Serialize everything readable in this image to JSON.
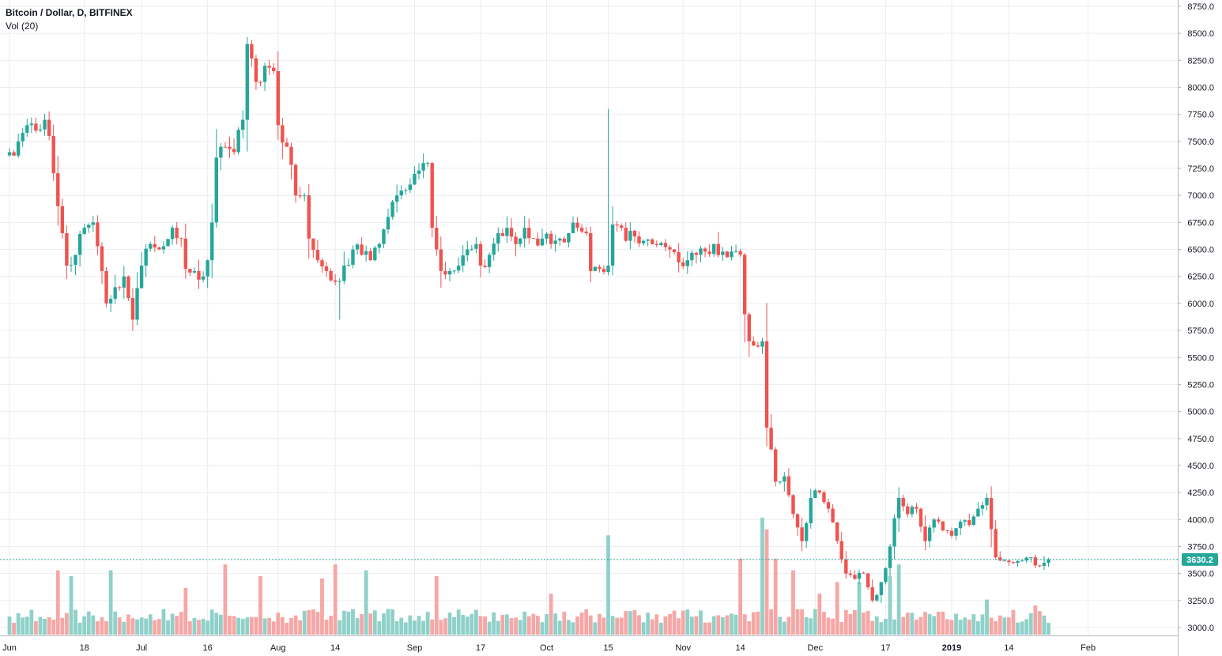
{
  "header": {
    "symbol_title": "Bitcoin / Dollar, D, BITFINEX",
    "volume_label": "Vol (20)"
  },
  "colors": {
    "up": "#26a69a",
    "down": "#ef5350",
    "up_volume": "#8fd1c9",
    "down_volume": "#f5a7a6",
    "grid": "#e9edf2",
    "axis_text": "#131722",
    "last_price": "#26a69a"
  },
  "chart_data": {
    "type": "candlestick",
    "title": "Bitcoin / Dollar, D, BITFINEX",
    "ylim": [
      2950,
      8800
    ],
    "y_ticks": [
      "8750.0",
      "8500.0",
      "8250.0",
      "8000.0",
      "7750.0",
      "7500.0",
      "7250.0",
      "7000.0",
      "6750.0",
      "6500.0",
      "6250.0",
      "6000.0",
      "5750.0",
      "5500.0",
      "5250.0",
      "5000.0",
      "4750.0",
      "4500.0",
      "4250.0",
      "4000.0",
      "3750.0",
      "3500.0",
      "3250.0",
      "3000.0"
    ],
    "x_ticks": [
      {
        "label": "Jun",
        "day": 0
      },
      {
        "label": "18",
        "day": 17
      },
      {
        "label": "Jul",
        "day": 30
      },
      {
        "label": "16",
        "day": 45
      },
      {
        "label": "Aug",
        "day": 61
      },
      {
        "label": "14",
        "day": 74
      },
      {
        "label": "Sep",
        "day": 92
      },
      {
        "label": "17",
        "day": 107
      },
      {
        "label": "Oct",
        "day": 122
      },
      {
        "label": "15",
        "day": 136
      },
      {
        "label": "Nov",
        "day": 153
      },
      {
        "label": "14",
        "day": 166
      },
      {
        "label": "Dec",
        "day": 183
      },
      {
        "label": "17",
        "day": 199
      },
      {
        "label": "2019",
        "day": 214
      },
      {
        "label": "14",
        "day": 227
      },
      {
        "label": "Feb",
        "day": 245
      }
    ],
    "last_price": "3630.2",
    "last_price_value": 3630.2,
    "anchors": [
      {
        "d": 0,
        "p": 7400
      },
      {
        "d": 2,
        "p": 7500
      },
      {
        "d": 4,
        "p": 7650
      },
      {
        "d": 6,
        "p": 7600
      },
      {
        "d": 8,
        "p": 7700
      },
      {
        "d": 9,
        "p": 7550
      },
      {
        "d": 11,
        "p": 6900
      },
      {
        "d": 12,
        "p": 6650
      },
      {
        "d": 13,
        "p": 6350
      },
      {
        "d": 15,
        "p": 6450
      },
      {
        "d": 17,
        "p": 6700
      },
      {
        "d": 19,
        "p": 6750
      },
      {
        "d": 21,
        "p": 6300
      },
      {
        "d": 22,
        "p": 6000
      },
      {
        "d": 24,
        "p": 6150
      },
      {
        "d": 26,
        "p": 6250
      },
      {
        "d": 27,
        "p": 6050
      },
      {
        "d": 28,
        "p": 5850
      },
      {
        "d": 30,
        "p": 6350
      },
      {
        "d": 32,
        "p": 6550
      },
      {
        "d": 34,
        "p": 6500
      },
      {
        "d": 37,
        "p": 6700
      },
      {
        "d": 39,
        "p": 6600
      },
      {
        "d": 40,
        "p": 6320
      },
      {
        "d": 42,
        "p": 6300
      },
      {
        "d": 44,
        "p": 6250
      },
      {
        "d": 45,
        "p": 6400
      },
      {
        "d": 46,
        "p": 6750
      },
      {
        "d": 47,
        "p": 7350
      },
      {
        "d": 49,
        "p": 7450
      },
      {
        "d": 51,
        "p": 7400
      },
      {
        "d": 53,
        "p": 7700
      },
      {
        "d": 54,
        "p": 8400
      },
      {
        "d": 56,
        "p": 8050
      },
      {
        "d": 58,
        "p": 8200
      },
      {
        "d": 60,
        "p": 8150
      },
      {
        "d": 61,
        "p": 7650
      },
      {
        "d": 63,
        "p": 7450
      },
      {
        "d": 65,
        "p": 7000
      },
      {
        "d": 67,
        "p": 7000
      },
      {
        "d": 68,
        "p": 6600
      },
      {
        "d": 70,
        "p": 6400
      },
      {
        "d": 72,
        "p": 6300
      },
      {
        "d": 74,
        "p": 6200
      },
      {
        "d": 76,
        "p": 6350
      },
      {
        "d": 78,
        "p": 6500
      },
      {
        "d": 80,
        "p": 6450
      },
      {
        "d": 82,
        "p": 6400
      },
      {
        "d": 84,
        "p": 6550
      },
      {
        "d": 86,
        "p": 6800
      },
      {
        "d": 88,
        "p": 7000
      },
      {
        "d": 90,
        "p": 7050
      },
      {
        "d": 92,
        "p": 7200
      },
      {
        "d": 94,
        "p": 7300
      },
      {
        "d": 95,
        "p": 7300
      },
      {
        "d": 96,
        "p": 6700
      },
      {
        "d": 97,
        "p": 6500
      },
      {
        "d": 98,
        "p": 6300
      },
      {
        "d": 100,
        "p": 6300
      },
      {
        "d": 102,
        "p": 6350
      },
      {
        "d": 104,
        "p": 6500
      },
      {
        "d": 106,
        "p": 6550
      },
      {
        "d": 107,
        "p": 6350
      },
      {
        "d": 109,
        "p": 6450
      },
      {
        "d": 111,
        "p": 6650
      },
      {
        "d": 113,
        "p": 6700
      },
      {
        "d": 115,
        "p": 6550
      },
      {
        "d": 117,
        "p": 6700
      },
      {
        "d": 119,
        "p": 6600
      },
      {
        "d": 121,
        "p": 6600
      },
      {
        "d": 123,
        "p": 6550
      },
      {
        "d": 125,
        "p": 6600
      },
      {
        "d": 127,
        "p": 6650
      },
      {
        "d": 129,
        "p": 6700
      },
      {
        "d": 131,
        "p": 6650
      },
      {
        "d": 132,
        "p": 6300
      },
      {
        "d": 134,
        "p": 6320
      },
      {
        "d": 136,
        "p": 6350
      },
      {
        "d": 137,
        "p": 6730
      },
      {
        "d": 139,
        "p": 6700
      },
      {
        "d": 140,
        "p": 6580
      },
      {
        "d": 142,
        "p": 6620
      },
      {
        "d": 144,
        "p": 6580
      },
      {
        "d": 146,
        "p": 6550
      },
      {
        "d": 148,
        "p": 6560
      },
      {
        "d": 150,
        "p": 6500
      },
      {
        "d": 152,
        "p": 6380
      },
      {
        "d": 154,
        "p": 6400
      },
      {
        "d": 156,
        "p": 6450
      },
      {
        "d": 158,
        "p": 6480
      },
      {
        "d": 160,
        "p": 6550
      },
      {
        "d": 162,
        "p": 6480
      },
      {
        "d": 164,
        "p": 6480
      },
      {
        "d": 166,
        "p": 6450
      },
      {
        "d": 167,
        "p": 5900
      },
      {
        "d": 168,
        "p": 5650
      },
      {
        "d": 170,
        "p": 5600
      },
      {
        "d": 171,
        "p": 5650
      },
      {
        "d": 172,
        "p": 4850
      },
      {
        "d": 173,
        "p": 4650
      },
      {
        "d": 174,
        "p": 4350
      },
      {
        "d": 176,
        "p": 4400
      },
      {
        "d": 178,
        "p": 4050
      },
      {
        "d": 180,
        "p": 3800
      },
      {
        "d": 182,
        "p": 4200
      },
      {
        "d": 184,
        "p": 4250
      },
      {
        "d": 186,
        "p": 4100
      },
      {
        "d": 188,
        "p": 3800
      },
      {
        "d": 190,
        "p": 3500
      },
      {
        "d": 192,
        "p": 3450
      },
      {
        "d": 194,
        "p": 3500
      },
      {
        "d": 196,
        "p": 3250
      },
      {
        "d": 197,
        "p": 3300
      },
      {
        "d": 199,
        "p": 3550
      },
      {
        "d": 200,
        "p": 3750
      },
      {
        "d": 202,
        "p": 4200
      },
      {
        "d": 204,
        "p": 4050
      },
      {
        "d": 206,
        "p": 4100
      },
      {
        "d": 208,
        "p": 3800
      },
      {
        "d": 210,
        "p": 4000
      },
      {
        "d": 212,
        "p": 3900
      },
      {
        "d": 214,
        "p": 3850
      },
      {
        "d": 216,
        "p": 3980
      },
      {
        "d": 218,
        "p": 3950
      },
      {
        "d": 220,
        "p": 4100
      },
      {
        "d": 222,
        "p": 4200
      },
      {
        "d": 224,
        "p": 3650
      },
      {
        "d": 226,
        "p": 3620
      },
      {
        "d": 228,
        "p": 3600
      },
      {
        "d": 230,
        "p": 3620
      },
      {
        "d": 232,
        "p": 3650
      },
      {
        "d": 234,
        "p": 3570
      },
      {
        "d": 236,
        "p": 3630
      }
    ],
    "volume_spikes": [
      {
        "d": 11,
        "v": 0.55
      },
      {
        "d": 14,
        "v": 0.5
      },
      {
        "d": 23,
        "v": 0.55
      },
      {
        "d": 40,
        "v": 0.4
      },
      {
        "d": 49,
        "v": 0.6
      },
      {
        "d": 57,
        "v": 0.5
      },
      {
        "d": 71,
        "v": 0.48
      },
      {
        "d": 74,
        "v": 0.6
      },
      {
        "d": 81,
        "v": 0.55
      },
      {
        "d": 97,
        "v": 0.5
      },
      {
        "d": 123,
        "v": 0.35
      },
      {
        "d": 136,
        "v": 0.85
      },
      {
        "d": 166,
        "v": 0.65
      },
      {
        "d": 171,
        "v": 1.0
      },
      {
        "d": 172,
        "v": 0.9
      },
      {
        "d": 174,
        "v": 0.65
      },
      {
        "d": 178,
        "v": 0.55
      },
      {
        "d": 184,
        "v": 0.35
      },
      {
        "d": 188,
        "v": 0.45
      },
      {
        "d": 193,
        "v": 0.45
      },
      {
        "d": 200,
        "v": 0.5
      },
      {
        "d": 202,
        "v": 0.6
      },
      {
        "d": 222,
        "v": 0.3
      },
      {
        "d": 233,
        "v": 0.25
      }
    ]
  }
}
